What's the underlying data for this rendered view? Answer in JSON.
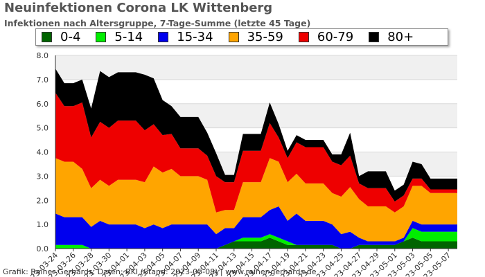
{
  "title": "Neuinfektionen Corona LK Wittenberg",
  "subtitle": "Infektionen nach Altersgruppe, 7-Tage-Summe (letzte 45 Tage)",
  "footer": "Grafik: Rainer Gerhards, Daten: RKI (Stand: 2023-05-08) | www.rainer-gerhards.de",
  "legend": [
    {
      "label": "0-4",
      "color": "#006400"
    },
    {
      "label": "5-14",
      "color": "#00ee00"
    },
    {
      "label": "15-34",
      "color": "#0000ee"
    },
    {
      "label": "35-59",
      "color": "#ffa500"
    },
    {
      "label": "60-79",
      "color": "#ee0000"
    },
    {
      "label": "80+",
      "color": "#000000"
    }
  ],
  "chart_data": {
    "type": "area",
    "stacked": true,
    "title": "Neuinfektionen Corona LK Wittenberg",
    "subtitle": "Infektionen nach Altersgruppe, 7-Tage-Summe (letzte 45 Tage)",
    "ylim": [
      0,
      8
    ],
    "yticks": [
      "0.0",
      "1.0",
      "2.0",
      "3.0",
      "4.0",
      "5.0",
      "6.0",
      "7.0",
      "8.0"
    ],
    "grid": true,
    "legend_position": "top",
    "x": [
      "2023-03-24",
      "2023-03-25",
      "2023-03-26",
      "2023-03-27",
      "2023-03-28",
      "2023-03-29",
      "2023-03-30",
      "2023-03-31",
      "2023-04-01",
      "2023-04-02",
      "2023-04-03",
      "2023-04-04",
      "2023-04-05",
      "2023-04-06",
      "2023-04-07",
      "2023-04-08",
      "2023-04-09",
      "2023-04-10",
      "2023-04-11",
      "2023-04-12",
      "2023-04-13",
      "2023-04-14",
      "2023-04-15",
      "2023-04-16",
      "2023-04-17",
      "2023-04-18",
      "2023-04-19",
      "2023-04-20",
      "2023-04-21",
      "2023-04-22",
      "2023-04-23",
      "2023-04-24",
      "2023-04-25",
      "2023-04-26",
      "2023-04-27",
      "2023-04-28",
      "2023-04-29",
      "2023-04-30",
      "2023-05-01",
      "2023-05-02",
      "2023-05-03",
      "2023-05-04",
      "2023-05-05",
      "2023-05-06",
      "2023-05-07",
      "2023-05-08"
    ],
    "xtick_labels": [
      "2023-03-24",
      "2023-03-26",
      "2023-03-28",
      "2023-03-30",
      "2023-04-01",
      "2023-04-03",
      "2023-04-05",
      "2023-04-07",
      "2023-04-09",
      "2023-04-11",
      "2023-04-13",
      "2023-04-15",
      "2023-04-17",
      "2023-04-19",
      "2023-04-21",
      "2023-04-23",
      "2023-04-25",
      "2023-04-27",
      "2023-04-29",
      "2023-05-01",
      "2023-05-03",
      "2023-05-05",
      "2023-05-07"
    ],
    "series": [
      {
        "name": "0-4",
        "color": "#006400",
        "values": [
          0.0,
          0.0,
          0.0,
          0.0,
          0.0,
          0.0,
          0.0,
          0.0,
          0.0,
          0.0,
          0.0,
          0.0,
          0.0,
          0.0,
          0.0,
          0.0,
          0.0,
          0.0,
          0.0,
          0.15,
          0.3,
          0.3,
          0.3,
          0.3,
          0.45,
          0.3,
          0.15,
          0.15,
          0.15,
          0.15,
          0.15,
          0.15,
          0.0,
          0.0,
          0.15,
          0.15,
          0.15,
          0.15,
          0.15,
          0.3,
          0.45,
          0.3,
          0.3,
          0.3,
          0.3,
          0.3
        ]
      },
      {
        "name": "5-14",
        "color": "#00ee00",
        "values": [
          0.15,
          0.15,
          0.15,
          0.15,
          0.0,
          0.0,
          0.0,
          0.0,
          0.0,
          0.0,
          0.0,
          0.0,
          0.0,
          0.0,
          0.0,
          0.0,
          0.0,
          0.0,
          0.0,
          0.0,
          0.0,
          0.15,
          0.15,
          0.15,
          0.15,
          0.15,
          0.15,
          0.0,
          0.0,
          0.0,
          0.0,
          0.0,
          0.0,
          0.0,
          0.0,
          0.0,
          0.0,
          0.0,
          0.0,
          0.0,
          0.4,
          0.4,
          0.4,
          0.4,
          0.4,
          0.4
        ]
      },
      {
        "name": "15-34",
        "color": "#0000ee",
        "values": [
          1.3,
          1.15,
          1.15,
          1.15,
          0.9,
          1.15,
          1.0,
          1.0,
          1.0,
          1.0,
          0.85,
          1.0,
          0.85,
          1.0,
          1.0,
          1.0,
          1.0,
          1.0,
          0.6,
          0.7,
          0.55,
          0.85,
          0.85,
          0.85,
          1.0,
          1.3,
          0.85,
          1.3,
          1.0,
          1.0,
          1.0,
          0.85,
          0.6,
          0.7,
          0.3,
          0.15,
          0.15,
          0.15,
          0.15,
          0.15,
          0.3,
          0.3,
          0.3,
          0.3,
          0.3,
          0.3
        ]
      },
      {
        "name": "35-59",
        "color": "#ffa500",
        "values": [
          2.3,
          2.3,
          2.3,
          2.0,
          1.6,
          1.7,
          1.6,
          1.85,
          1.85,
          1.85,
          1.9,
          2.4,
          2.3,
          2.3,
          2.0,
          2.0,
          2.0,
          1.85,
          0.9,
          0.75,
          0.75,
          1.45,
          1.45,
          1.45,
          2.15,
          1.85,
          1.6,
          1.65,
          1.55,
          1.55,
          1.55,
          1.3,
          1.55,
          1.85,
          1.6,
          1.45,
          1.45,
          1.45,
          1.2,
          1.3,
          1.45,
          1.6,
          1.3,
          1.3,
          1.3,
          1.3
        ]
      },
      {
        "name": "60-79",
        "color": "#ee0000",
        "values": [
          2.7,
          2.3,
          2.3,
          2.75,
          2.1,
          2.4,
          2.4,
          2.45,
          2.45,
          2.45,
          2.15,
          1.75,
          1.55,
          1.45,
          1.15,
          1.15,
          1.15,
          1.0,
          1.5,
          1.15,
          1.15,
          1.3,
          1.3,
          1.3,
          1.45,
          1.0,
          1.0,
          1.3,
          1.5,
          1.5,
          1.5,
          1.3,
          1.3,
          1.3,
          0.65,
          0.75,
          0.75,
          0.75,
          0.45,
          0.45,
          0.3,
          0.3,
          0.15,
          0.15,
          0.15,
          0.15
        ]
      },
      {
        "name": "80+",
        "color": "#000000",
        "values": [
          1.0,
          0.95,
          0.95,
          0.95,
          1.2,
          2.1,
          2.1,
          2.0,
          2.0,
          2.0,
          2.3,
          1.9,
          1.45,
          1.15,
          1.3,
          1.3,
          1.3,
          0.95,
          0.95,
          0.3,
          0.3,
          0.7,
          0.7,
          0.7,
          0.85,
          0.55,
          0.3,
          0.3,
          0.3,
          0.3,
          0.3,
          0.3,
          0.45,
          0.95,
          0.3,
          0.7,
          0.7,
          0.7,
          0.45,
          0.45,
          0.7,
          0.6,
          0.45,
          0.45,
          0.45,
          0.45
        ]
      }
    ]
  }
}
